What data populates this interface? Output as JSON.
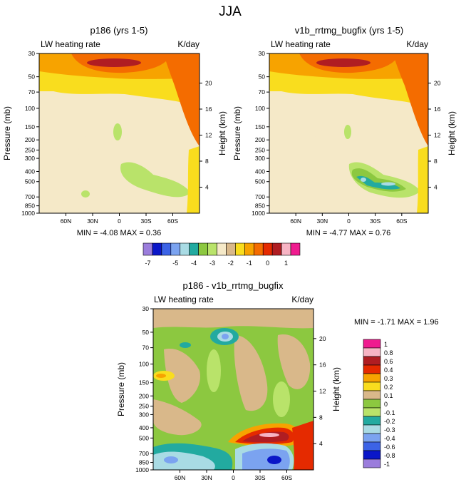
{
  "figure_title": "JJA",
  "colors": {
    "top_levels": [
      "#9b7ddc",
      "#0a16c8",
      "#3c63e6",
      "#7ba3f0",
      "#a9dbe4",
      "#22aaa0",
      "#8cc840",
      "#b9e36a",
      "#f5e9c8",
      "#d9b88a",
      "#f9dd1e",
      "#f7a300",
      "#f46c00",
      "#e52a00",
      "#b01d22",
      "#f7b4c4",
      "#ef1b8f"
    ],
    "diff_levels": [
      "#9b7ddc",
      "#0a16c8",
      "#3c63e6",
      "#7ba3f0",
      "#a9dbe4",
      "#22aaa0",
      "#b9e36a",
      "#8cc840",
      "#d9b88a",
      "#f9dd1e",
      "#f7a300",
      "#e52a00",
      "#b01d22",
      "#f7b4c4",
      "#ef1b8f"
    ]
  },
  "chart_data": [
    {
      "type": "heatmap",
      "title": "p186 (yrs 1-5)",
      "left_string": "LW heating rate",
      "right_string": "K/day",
      "ylabel": "Pressure (mb)",
      "y2label": "Height (km)",
      "xticks": [
        "60N",
        "30N",
        "0",
        "30S",
        "60S"
      ],
      "yticks": [
        "30",
        "50",
        "70",
        "100",
        "150",
        "200",
        "250",
        "300",
        "400",
        "500",
        "700",
        "850",
        "1000"
      ],
      "y2ticks": [
        "20",
        "16",
        "12",
        "8",
        "4"
      ],
      "stats": "MIN = -4.08  MAX =  0.36",
      "min": -4.08,
      "max": 0.36
    },
    {
      "type": "heatmap",
      "title": "v1b_rrtmg_bugfix (yrs 1-5)",
      "left_string": "LW heating rate",
      "right_string": "K/day",
      "ylabel": "Pressure (mb)",
      "y2label": "Height (km)",
      "xticks": [
        "60N",
        "30N",
        "0",
        "30S",
        "60S"
      ],
      "yticks": [
        "30",
        "50",
        "70",
        "100",
        "150",
        "200",
        "250",
        "300",
        "400",
        "500",
        "700",
        "850",
        "1000"
      ],
      "y2ticks": [
        "20",
        "16",
        "12",
        "8",
        "4"
      ],
      "stats": "MIN = -4.77  MAX =  0.76",
      "min": -4.77,
      "max": 0.76
    },
    {
      "type": "heatmap",
      "title": "p186 - v1b_rrtmg_bugfix",
      "left_string": "LW heating rate",
      "right_string": "K/day",
      "ylabel": "Pressure (mb)",
      "y2label": "Height (km)",
      "xticks": [
        "60N",
        "30N",
        "0",
        "30S",
        "60S"
      ],
      "yticks": [
        "30",
        "50",
        "70",
        "100",
        "150",
        "200",
        "250",
        "300",
        "400",
        "500",
        "700",
        "850",
        "1000"
      ],
      "y2ticks": [
        "20",
        "16",
        "12",
        "8",
        "4"
      ],
      "stats": "MIN = -1.71  MAX =  1.96",
      "min": -1.71,
      "max": 1.96
    }
  ],
  "top_colorbar": {
    "labels": [
      "-7",
      "-5",
      "-4",
      "-3",
      "-2",
      "-1",
      "0",
      "1"
    ]
  },
  "diff_colorbar": {
    "labels": [
      "1",
      "0.8",
      "0.6",
      "0.4",
      "0.3",
      "0.2",
      "0.1",
      "0",
      "-0.1",
      "-0.2",
      "-0.3",
      "-0.4",
      "-0.6",
      "-0.8",
      "-1"
    ]
  }
}
